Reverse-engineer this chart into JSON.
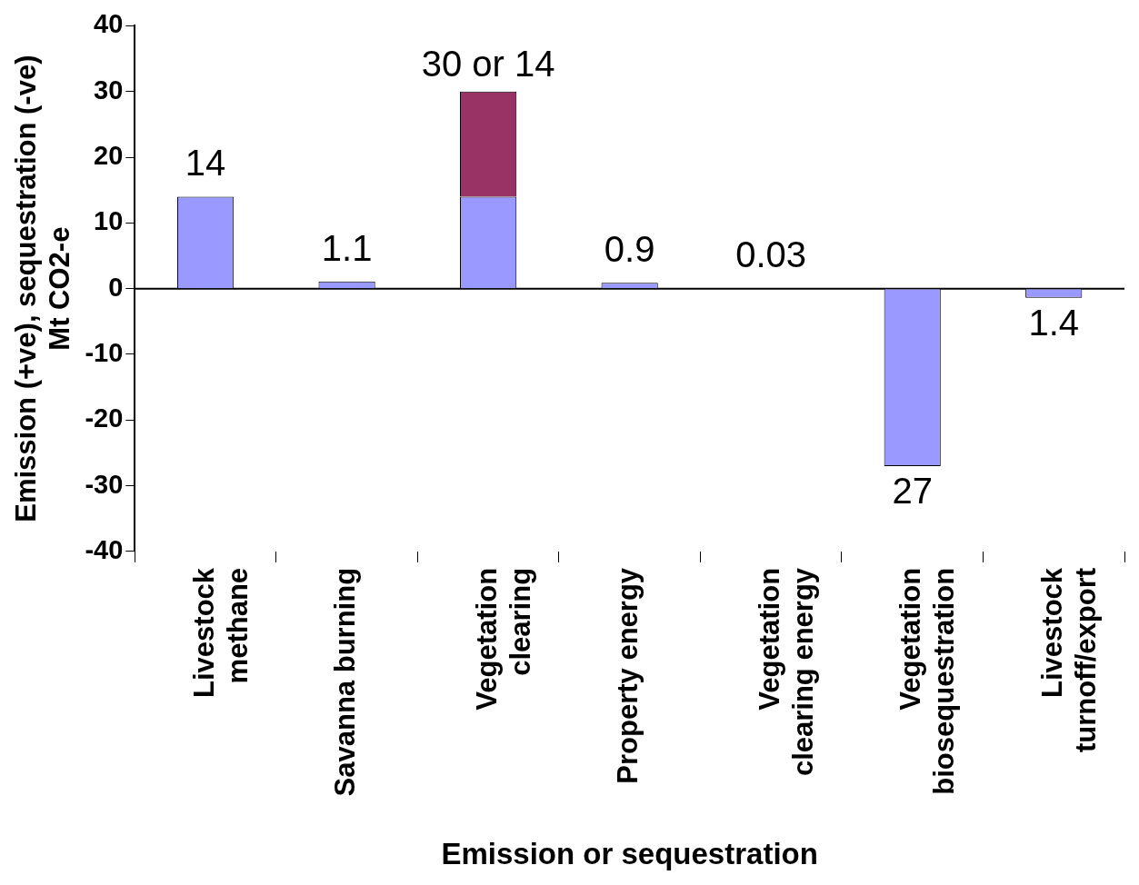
{
  "chart_data": {
    "type": "bar",
    "stacked": true,
    "xlabel": "Emission or sequestration",
    "ylabel": "Emission (+ve), sequestration (-ve)\nMt CO2-e",
    "categories": [
      "Livestock methane",
      "Savanna burning",
      "Vegetation clearing",
      "Property energy",
      "Vegetation clearing energy",
      "Vegetation biosequestration",
      "Livestock turnoff/export"
    ],
    "series": [
      {
        "color": "#9999ff",
        "values": [
          14,
          1.1,
          14,
          0.9,
          0.03,
          -27,
          -1.4
        ],
        "value_labels": [
          "14",
          "1.1",
          null,
          "0.9",
          "0.03",
          null,
          null
        ]
      },
      {
        "color": "#993366",
        "values": [
          null,
          null,
          16,
          null,
          null,
          null,
          null
        ]
      }
    ],
    "annotations": [
      {
        "text": "30 or 14",
        "x": "Vegetation clearing",
        "y": 30
      },
      {
        "text": "27",
        "x": "Vegetation biosequestration",
        "y": -27
      },
      {
        "text": "1.4",
        "x": "Livestock turnoff/export",
        "y": -1.4
      }
    ],
    "ref_lines": [
      {
        "axis": "y",
        "value": 0,
        "color": "#000000"
      }
    ],
    "ylim": [
      -40,
      40
    ],
    "yticks": [
      -40,
      -30,
      -20,
      -10,
      0,
      10,
      20,
      30,
      40
    ],
    "grid": false,
    "legend": false
  }
}
